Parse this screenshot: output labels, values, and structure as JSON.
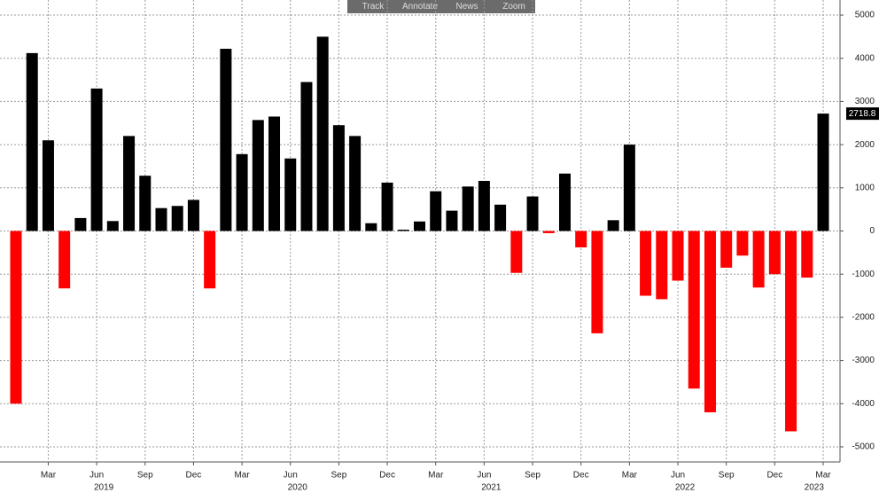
{
  "toolbar": [
    "Track",
    "Annotate",
    "News",
    "Zoom"
  ],
  "chart_data": {
    "type": "bar",
    "categories": [
      null,
      null,
      "Mar",
      null,
      null,
      "Jun",
      null,
      null,
      "Sep",
      null,
      null,
      "Dec",
      null,
      null,
      "Mar",
      null,
      null,
      "Jun",
      null,
      null,
      "Sep",
      null,
      null,
      "Dec",
      null,
      null,
      "Mar",
      null,
      null,
      "Jun",
      null,
      null,
      "Sep",
      null,
      null,
      "Dec",
      null,
      null,
      "Mar",
      null,
      null,
      "Jun",
      null,
      null,
      "Sep",
      null,
      null,
      "Dec",
      null,
      null,
      "Mar"
    ],
    "year_labels": [
      {
        "label": "2019",
        "index": 5
      },
      {
        "label": "2020",
        "index": 17
      },
      {
        "label": "2021",
        "index": 29
      },
      {
        "label": "2022",
        "index": 41
      },
      {
        "label": "2023",
        "index": 49
      }
    ],
    "values": [
      -4000,
      4120,
      2100,
      -1330,
      300,
      3300,
      230,
      2200,
      1280,
      530,
      580,
      720,
      -1330,
      4220,
      1780,
      2570,
      2650,
      1680,
      3450,
      4500,
      2450,
      2200,
      180,
      1120,
      30,
      220,
      920,
      470,
      1030,
      1160,
      610,
      -970,
      800,
      -50,
      1330,
      -380,
      -2370,
      250,
      2000,
      -1500,
      -1580,
      -1150,
      -3650,
      -4200,
      -850,
      -570,
      -1310,
      -1000,
      -4640,
      -1080,
      2718.8
    ],
    "colors": {
      "positive": "#000000",
      "negative": "#ff0000"
    },
    "ylim": [
      -5350,
      5350
    ],
    "yticks": [
      -5000,
      -4000,
      -3000,
      -2000,
      -1000,
      0,
      1000,
      2000,
      3000,
      4000,
      5000
    ],
    "grid": true,
    "y_axis_side": "right"
  }
}
